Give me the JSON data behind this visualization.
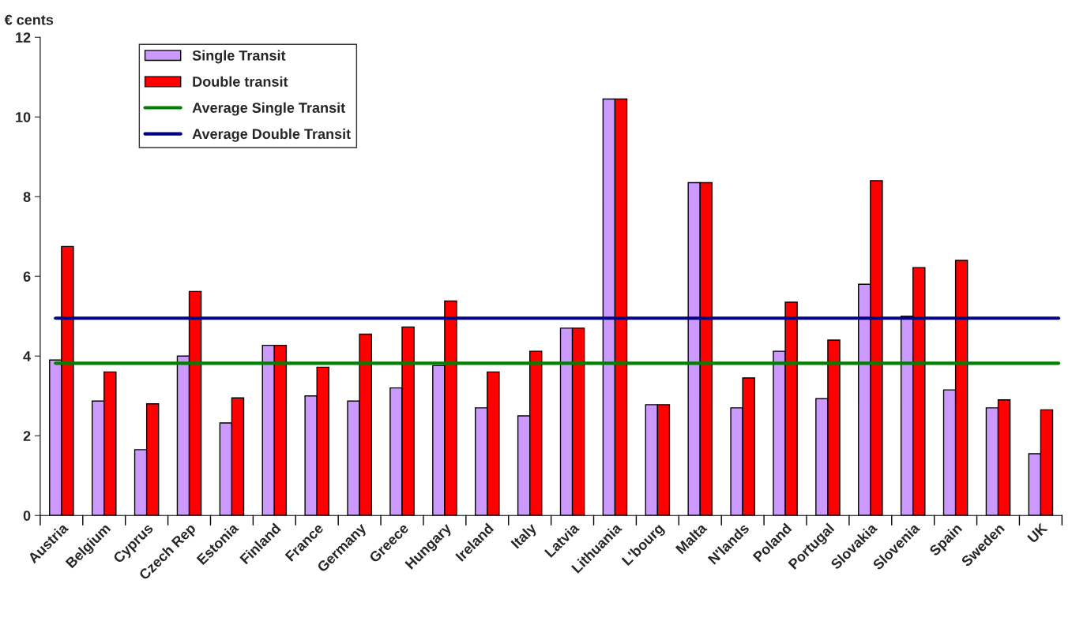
{
  "chart_data": {
    "type": "bar",
    "ylabel": "€ cents",
    "categories": [
      "Austria",
      "Belgium",
      "Cyprus",
      "Czech Rep",
      "Estonia",
      "Finland",
      "France",
      "Germany",
      "Greece",
      "Hungary",
      "Ireland",
      "Italy",
      "Latvia",
      "Lithuania",
      "L'bourg",
      "Malta",
      "N'lands",
      "Poland",
      "Portugal",
      "Slovakia",
      "Slovenia",
      "Spain",
      "Sweden",
      "UK"
    ],
    "series": [
      {
        "name": "Single Transit",
        "color": "#cc99ff",
        "values": [
          3.9,
          2.87,
          1.65,
          4.0,
          2.32,
          4.27,
          3.0,
          2.87,
          3.2,
          3.76,
          2.7,
          2.5,
          4.7,
          10.45,
          2.78,
          8.35,
          2.7,
          4.12,
          2.93,
          5.8,
          5.0,
          3.15,
          2.7,
          1.55
        ]
      },
      {
        "name": "Double transit",
        "color": "#ff0000",
        "values": [
          6.75,
          3.6,
          2.8,
          5.62,
          2.95,
          4.27,
          3.72,
          4.55,
          4.73,
          5.38,
          3.6,
          4.12,
          4.7,
          10.45,
          2.78,
          8.35,
          3.45,
          5.35,
          4.4,
          8.4,
          6.22,
          6.4,
          2.9,
          2.65
        ]
      }
    ],
    "ref_lines": [
      {
        "axis": "y",
        "value": 3.82,
        "label": "Average Single Transit",
        "color": "#008000"
      },
      {
        "axis": "y",
        "value": 4.95,
        "label": "Average Double Transit",
        "color": "#000080"
      }
    ],
    "ylim": [
      0,
      12
    ],
    "yticks": [
      0,
      2,
      4,
      6,
      8,
      10,
      12
    ],
    "grid": false,
    "legend": "top left"
  }
}
